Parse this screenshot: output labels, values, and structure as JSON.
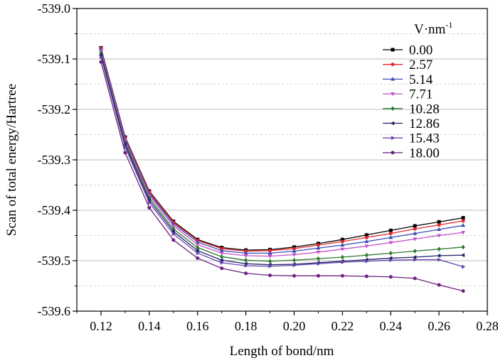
{
  "chart_data": {
    "type": "line",
    "xlabel": "Length of bond/nm",
    "ylabel": "Scan of total energy/Hartree",
    "xlim": [
      0.11,
      0.28
    ],
    "ylim": [
      -539.6,
      -539.0
    ],
    "x_ticks": [
      0.12,
      0.14,
      0.16,
      0.18,
      0.2,
      0.22,
      0.24,
      0.26,
      0.28
    ],
    "x_tick_labels": [
      "0.12",
      "0.14",
      "0.16",
      "0.18",
      "0.20",
      "0.22",
      "0.24",
      "0.26",
      "0.28"
    ],
    "y_ticks": [
      -539.6,
      -539.5,
      -539.4,
      -539.3,
      -539.2,
      -539.1,
      -539.0
    ],
    "y_tick_labels": [
      "-539.6",
      "-539.5",
      "-539.4",
      "-539.3",
      "-539.2",
      "-539.1",
      "-539.0"
    ],
    "grid": true,
    "legend": {
      "title_base": "V·nm",
      "title_sup": "-1",
      "position": "top-right"
    },
    "x": [
      0.12,
      0.13,
      0.14,
      0.15,
      0.16,
      0.17,
      0.18,
      0.19,
      0.2,
      0.21,
      0.22,
      0.23,
      0.24,
      0.25,
      0.26,
      0.27
    ],
    "series": [
      {
        "name": "0.00",
        "color": "#000000",
        "marker": "square",
        "values": [
          -539.078,
          -539.255,
          -539.362,
          -539.422,
          -539.458,
          -539.474,
          -539.479,
          -539.478,
          -539.473,
          -539.466,
          -539.458,
          -539.449,
          -539.44,
          -539.431,
          -539.423,
          -539.415
        ]
      },
      {
        "name": "2.57",
        "color": "#e8262a",
        "marker": "circle",
        "values": [
          -539.079,
          -539.257,
          -539.364,
          -539.424,
          -539.46,
          -539.476,
          -539.481,
          -539.48,
          -539.476,
          -539.469,
          -539.462,
          -539.454,
          -539.446,
          -539.437,
          -539.429,
          -539.421
        ]
      },
      {
        "name": "5.14",
        "color": "#3d4cb3",
        "marker": "triangle-up",
        "values": [
          -539.081,
          -539.259,
          -539.367,
          -539.427,
          -539.463,
          -539.48,
          -539.485,
          -539.485,
          -539.481,
          -539.475,
          -539.469,
          -539.462,
          -539.454,
          -539.446,
          -539.438,
          -539.43
        ]
      },
      {
        "name": "7.71",
        "color": "#c254c9",
        "marker": "triangle-down",
        "values": [
          -539.084,
          -539.262,
          -539.37,
          -539.431,
          -539.468,
          -539.485,
          -539.49,
          -539.491,
          -539.488,
          -539.483,
          -539.477,
          -539.471,
          -539.464,
          -539.457,
          -539.45,
          -539.444
        ]
      },
      {
        "name": "10.28",
        "color": "#2e7a2e",
        "marker": "diamond",
        "values": [
          -539.088,
          -539.266,
          -539.375,
          -539.437,
          -539.474,
          -539.492,
          -539.499,
          -539.501,
          -539.499,
          -539.496,
          -539.493,
          -539.489,
          -539.485,
          -539.481,
          -539.477,
          -539.473
        ]
      },
      {
        "name": "12.86",
        "color": "#222266",
        "marker": "triangle-left",
        "values": [
          -539.092,
          -539.27,
          -539.38,
          -539.442,
          -539.48,
          -539.499,
          -539.506,
          -539.508,
          -539.507,
          -539.504,
          -539.501,
          -539.498,
          -539.495,
          -539.493,
          -539.49,
          -539.489
        ]
      },
      {
        "name": "15.43",
        "color": "#6645b0",
        "marker": "triangle-right",
        "values": [
          -539.096,
          -539.275,
          -539.385,
          -539.447,
          -539.485,
          -539.504,
          -539.51,
          -539.511,
          -539.509,
          -539.506,
          -539.503,
          -539.501,
          -539.499,
          -539.498,
          -539.498,
          -539.512
        ]
      },
      {
        "name": "18.00",
        "color": "#6e1f80",
        "marker": "circle",
        "values": [
          -539.106,
          -539.286,
          -539.395,
          -539.459,
          -539.495,
          -539.515,
          -539.525,
          -539.529,
          -539.53,
          -539.53,
          -539.53,
          -539.531,
          -539.532,
          -539.535,
          -539.548,
          -539.56
        ]
      }
    ]
  }
}
